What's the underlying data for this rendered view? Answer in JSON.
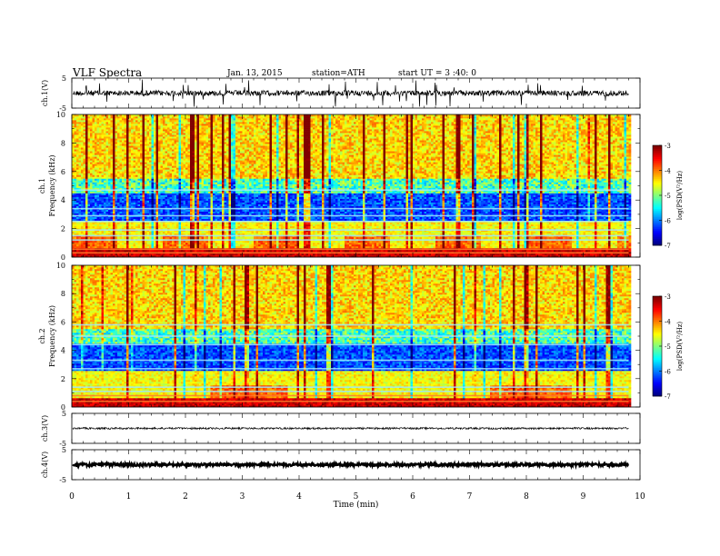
{
  "header": {
    "title": "VLF  Spectra",
    "date": "Jan. 13, 2015",
    "station": "station=ATH",
    "start": "start  UT  =   3 :40: 0"
  },
  "chart_data": [
    {
      "type": "line",
      "name": "ch1-waveform",
      "ylabel": "ch.1(V)",
      "ylim": [
        -5,
        5
      ],
      "yticks": [
        "5",
        "-5"
      ],
      "baseline": 0,
      "amplitude": 0.9,
      "xlim": [
        0,
        10
      ],
      "x_end": 9.8
    },
    {
      "type": "heatmap",
      "name": "ch1-spectrogram",
      "ylabel": "Frequency (kHz)",
      "ylabel2": "ch.1",
      "ylim": [
        0,
        10
      ],
      "yticks": [
        "0",
        "2",
        "4",
        "6",
        "8",
        "10"
      ],
      "xlim": [
        0,
        10
      ],
      "x_end": 9.8,
      "colorbar": {
        "label": "log(PSD(V²/Hz)",
        "range": [
          -7,
          -3
        ],
        "ticks": [
          "-3",
          "-4",
          "-5",
          "-6",
          "-7"
        ]
      }
    },
    {
      "type": "heatmap",
      "name": "ch2-spectrogram",
      "ylabel": "Frequency (kHz)",
      "ylabel2": "ch.2",
      "ylim": [
        0,
        10
      ],
      "yticks": [
        "0",
        "2",
        "4",
        "6",
        "8",
        "10"
      ],
      "xlim": [
        0,
        10
      ],
      "x_end": 9.8,
      "colorbar": {
        "label": "log(PSD(V²/Hz)",
        "range": [
          -7,
          -3
        ],
        "ticks": [
          "-3",
          "-4",
          "-5",
          "-6",
          "-7"
        ]
      }
    },
    {
      "type": "line",
      "name": "ch3-waveform",
      "ylabel": "ch.3(V)",
      "ylim": [
        -5,
        5
      ],
      "yticks": [
        "5",
        "-5"
      ],
      "baseline": 0,
      "amplitude": 0.15,
      "xlim": [
        0,
        10
      ],
      "x_end": 9.8
    },
    {
      "type": "line",
      "name": "ch4-waveform",
      "ylabel": "ch.4(V)",
      "ylim": [
        -5,
        5
      ],
      "yticks": [
        "5",
        "-5"
      ],
      "baseline": 0,
      "amplitude": 0.35,
      "xlim": [
        0,
        10
      ],
      "x_end": 9.8
    }
  ],
  "xaxis": {
    "label": "Time  (min)",
    "ticks": [
      "0",
      "1",
      "2",
      "3",
      "4",
      "5",
      "6",
      "7",
      "8",
      "9",
      "10"
    ]
  }
}
